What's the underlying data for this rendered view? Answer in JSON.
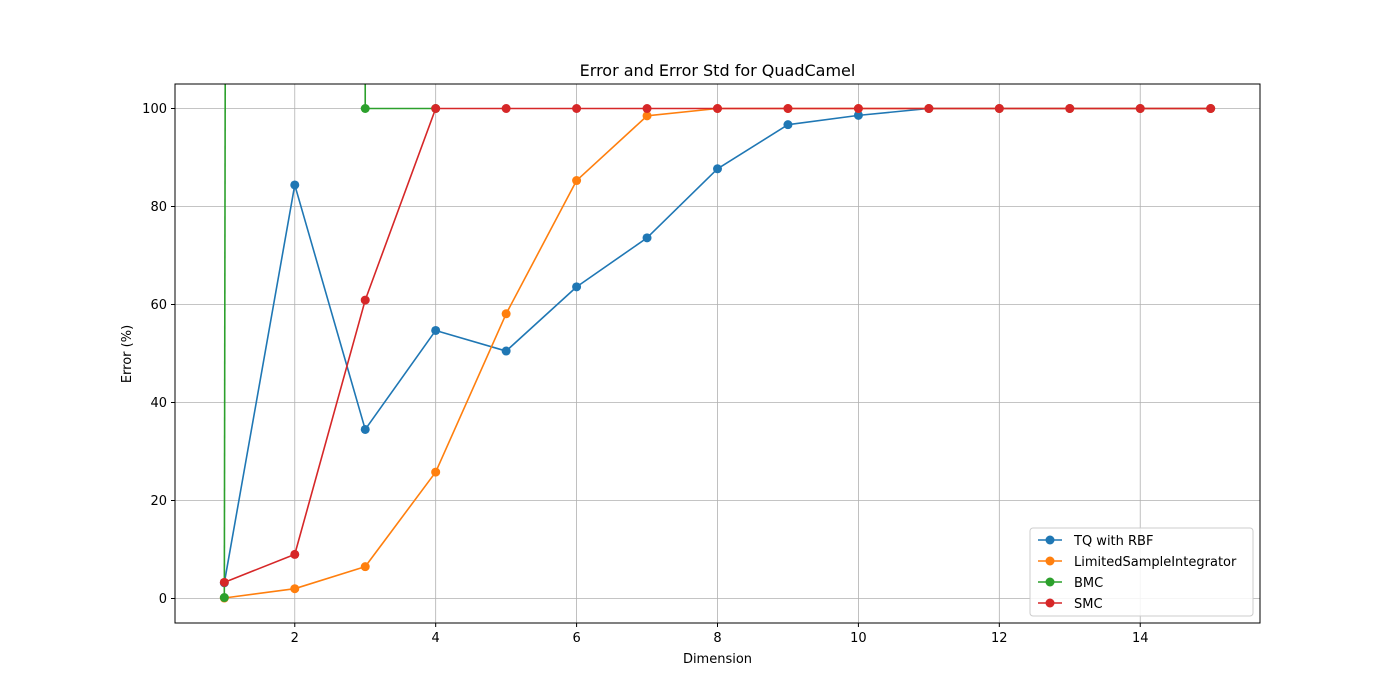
{
  "chart_data": {
    "type": "line",
    "title": "Error and Error Std for QuadCamel",
    "xlabel": "Dimension",
    "ylabel": "Error (%)",
    "xlim": [
      0.3,
      15.7
    ],
    "ylim": [
      -5,
      105
    ],
    "xticks": [
      2,
      4,
      6,
      8,
      10,
      12,
      14
    ],
    "yticks": [
      0,
      20,
      40,
      60,
      80,
      100
    ],
    "grid": true,
    "legend_position": "bottom-right",
    "series": [
      {
        "name": "TQ with RBF",
        "color": "#1f77b4",
        "x": [
          1,
          2,
          3,
          4,
          5,
          6,
          7,
          8,
          9,
          10,
          11,
          12,
          13,
          14,
          15
        ],
        "y": [
          3.2,
          84.4,
          34.5,
          54.7,
          50.5,
          63.6,
          73.6,
          87.7,
          96.7,
          98.6,
          100,
          100,
          100,
          100,
          100
        ]
      },
      {
        "name": "LimitedSampleIntegrator",
        "color": "#ff7f0e",
        "x": [
          1,
          2,
          3,
          4,
          5,
          6,
          7,
          8,
          9,
          10,
          11,
          12,
          13,
          14,
          15
        ],
        "y": [
          0.1,
          2.0,
          6.5,
          25.8,
          58.1,
          85.3,
          98.5,
          100,
          100,
          100,
          100,
          100,
          100,
          100,
          100
        ]
      },
      {
        "name": "BMC",
        "color": "#2ca02c",
        "segments": [
          {
            "x": [
              1,
              1.12
            ],
            "y": [
              0.2,
              1000
            ]
          },
          {
            "x": [
              2.97,
              3,
              4
            ],
            "y": [
              1000,
              100,
              100
            ]
          }
        ],
        "markers": {
          "x": [
            1,
            3,
            4
          ],
          "y": [
            0.2,
            100,
            100
          ]
        }
      },
      {
        "name": "SMC",
        "color": "#d62728",
        "x": [
          1,
          2,
          3,
          4,
          5,
          6,
          7,
          8,
          9,
          10,
          11,
          12,
          13,
          14,
          15
        ],
        "y": [
          3.3,
          9.0,
          60.9,
          100,
          100,
          100,
          100,
          100,
          100,
          100,
          100,
          100,
          100,
          100,
          100
        ]
      }
    ]
  }
}
